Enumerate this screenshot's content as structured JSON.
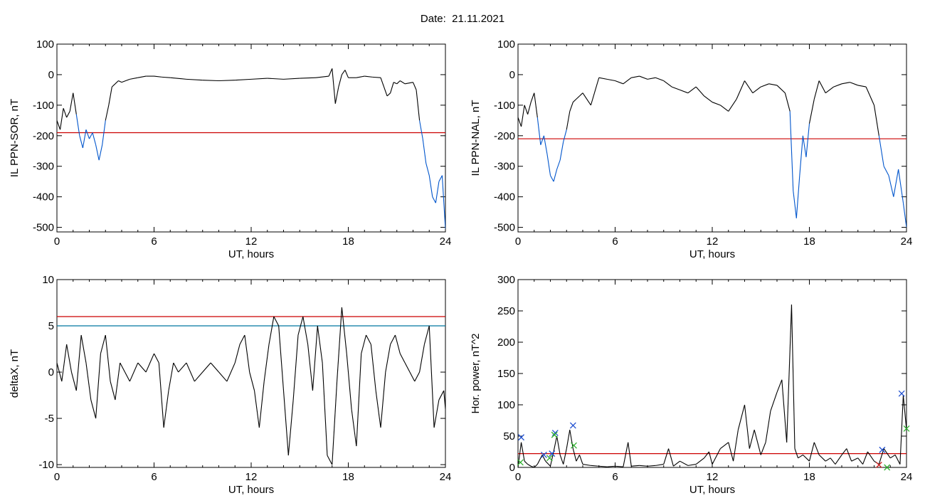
{
  "figure": {
    "title": "Date:  21.11.2021"
  },
  "colors": {
    "threshold": "#cc0000",
    "below": "#0055cc",
    "line": "#000000",
    "cyan_threshold": "#0077a0",
    "marker_blue": "#2050d0",
    "marker_green": "#30b030",
    "marker_red": "#cc2020"
  },
  "chart_data": [
    {
      "id": "ppn-sor",
      "type": "line",
      "xlabel": "UT, hours",
      "ylabel": "IL PPN-SOR, nT",
      "xlim": [
        0,
        24
      ],
      "ylim": [
        -515,
        100
      ],
      "xticks": [
        0,
        6,
        12,
        18,
        24
      ],
      "yticks": [
        -500,
        -400,
        -300,
        -200,
        -100,
        0,
        100
      ],
      "threshold": -190,
      "below_threshold_color": "blue",
      "x": [
        0,
        0.2,
        0.4,
        0.6,
        0.8,
        1.0,
        1.2,
        1.4,
        1.6,
        1.8,
        2.0,
        2.2,
        2.4,
        2.6,
        2.8,
        3.0,
        3.2,
        3.4,
        3.6,
        3.8,
        4.0,
        4.5,
        5.0,
        5.5,
        6.0,
        6.5,
        7.0,
        8.0,
        9.0,
        10.0,
        11.0,
        12.0,
        13.0,
        14.0,
        15.0,
        16.0,
        16.8,
        17.0,
        17.2,
        17.4,
        17.6,
        17.8,
        18.0,
        18.5,
        19.0,
        19.5,
        20.0,
        20.2,
        20.4,
        20.6,
        20.8,
        21.0,
        21.2,
        21.5,
        22.0,
        22.2,
        22.4,
        22.6,
        22.8,
        23.0,
        23.2,
        23.4,
        23.6,
        23.8,
        24.0
      ],
      "y": [
        -150,
        -180,
        -110,
        -140,
        -120,
        -60,
        -130,
        -200,
        -240,
        -180,
        -210,
        -190,
        -230,
        -280,
        -230,
        -150,
        -100,
        -40,
        -30,
        -20,
        -25,
        -15,
        -10,
        -5,
        -5,
        -8,
        -10,
        -15,
        -18,
        -20,
        -18,
        -15,
        -12,
        -15,
        -12,
        -10,
        -5,
        20,
        -95,
        -40,
        0,
        15,
        -10,
        -10,
        -5,
        -8,
        -10,
        -40,
        -70,
        -60,
        -25,
        -30,
        -20,
        -30,
        -25,
        -50,
        -150,
        -210,
        -290,
        -330,
        -400,
        -420,
        -350,
        -330,
        -505
      ]
    },
    {
      "id": "ppn-nal",
      "type": "line",
      "xlabel": "UT, hours",
      "ylabel": "IL PPN-NAL, nT",
      "xlim": [
        0,
        24
      ],
      "ylim": [
        -515,
        100
      ],
      "xticks": [
        0,
        6,
        12,
        18,
        24
      ],
      "yticks": [
        -500,
        -400,
        -300,
        -200,
        -100,
        0,
        100
      ],
      "threshold": -210,
      "below_threshold_color": "blue",
      "x": [
        0,
        0.2,
        0.4,
        0.6,
        0.8,
        1.0,
        1.2,
        1.4,
        1.6,
        1.8,
        2.0,
        2.2,
        2.4,
        2.6,
        2.8,
        3.0,
        3.2,
        3.4,
        3.6,
        3.8,
        4.0,
        4.5,
        5.0,
        5.5,
        6.0,
        6.5,
        7.0,
        7.5,
        8.0,
        8.5,
        9.0,
        9.5,
        10.0,
        10.5,
        11.0,
        11.5,
        12.0,
        12.5,
        13.0,
        13.5,
        14.0,
        14.5,
        15.0,
        15.5,
        16.0,
        16.5,
        16.8,
        17.0,
        17.2,
        17.4,
        17.6,
        17.8,
        18.0,
        18.3,
        18.6,
        19.0,
        19.5,
        20.0,
        20.5,
        21.0,
        21.5,
        22.0,
        22.3,
        22.6,
        22.9,
        23.2,
        23.5,
        23.8,
        24.0
      ],
      "y": [
        -140,
        -170,
        -100,
        -130,
        -90,
        -60,
        -140,
        -230,
        -200,
        -260,
        -330,
        -350,
        -310,
        -280,
        -220,
        -180,
        -120,
        -90,
        -80,
        -70,
        -60,
        -100,
        -10,
        -15,
        -20,
        -30,
        -10,
        -5,
        -15,
        -10,
        -20,
        -40,
        -50,
        -60,
        -40,
        -70,
        -90,
        -100,
        -120,
        -80,
        -20,
        -60,
        -40,
        -30,
        -35,
        -60,
        -120,
        -380,
        -470,
        -330,
        -200,
        -270,
        -160,
        -80,
        -20,
        -60,
        -40,
        -30,
        -25,
        -35,
        -40,
        -100,
        -200,
        -300,
        -330,
        -400,
        -310,
        -420,
        -500
      ]
    },
    {
      "id": "deltax",
      "type": "line",
      "xlabel": "UT, hours",
      "ylabel": "deltaX, nT",
      "xlim": [
        0,
        24
      ],
      "ylim": [
        -10.3,
        10
      ],
      "xticks": [
        0,
        6,
        12,
        18,
        24
      ],
      "yticks": [
        -10,
        -5,
        0,
        5,
        10
      ],
      "thresholds": [
        6,
        5
      ],
      "x": [
        0,
        0.3,
        0.6,
        0.9,
        1.2,
        1.5,
        1.8,
        2.1,
        2.4,
        2.7,
        3.0,
        3.3,
        3.6,
        3.9,
        4.2,
        4.5,
        5.0,
        5.5,
        6.0,
        6.3,
        6.6,
        6.9,
        7.2,
        7.5,
        8.0,
        8.5,
        9.0,
        9.5,
        10.0,
        10.5,
        11.0,
        11.3,
        11.6,
        11.9,
        12.2,
        12.5,
        12.8,
        13.1,
        13.4,
        13.7,
        14.0,
        14.3,
        14.6,
        14.9,
        15.2,
        15.5,
        15.8,
        16.1,
        16.4,
        16.7,
        17.0,
        17.3,
        17.6,
        17.9,
        18.2,
        18.5,
        18.8,
        19.1,
        19.4,
        19.7,
        20.0,
        20.3,
        20.6,
        20.9,
        21.2,
        21.5,
        21.8,
        22.1,
        22.4,
        22.7,
        23.0,
        23.3,
        23.6,
        23.9,
        24.0
      ],
      "y": [
        1,
        -1,
        3,
        0,
        -2,
        4,
        1,
        -3,
        -5,
        2,
        4,
        -1,
        -3,
        1,
        0,
        -1,
        1,
        0,
        2,
        1,
        -6,
        -2,
        1,
        0,
        1,
        -1,
        0,
        1,
        0,
        -1,
        1,
        3,
        4,
        0,
        -2,
        -6,
        -1,
        3,
        6,
        5,
        -2,
        -9,
        -3,
        4,
        6,
        3,
        -2,
        5,
        1,
        -9,
        -10,
        -1,
        7,
        2,
        -4,
        -8,
        2,
        4,
        3,
        -2,
        -6,
        0,
        3,
        4,
        2,
        1,
        0,
        -1,
        0,
        3,
        5,
        -6,
        -3,
        -2,
        -4
      ]
    },
    {
      "id": "hor-power",
      "type": "line",
      "xlabel": "UT, hours",
      "ylabel": "Hor. power, nT^2",
      "xlim": [
        0,
        24
      ],
      "ylim": [
        0,
        300
      ],
      "xticks": [
        0,
        6,
        12,
        18,
        24
      ],
      "yticks": [
        0,
        50,
        100,
        150,
        200,
        250,
        300
      ],
      "threshold": 22,
      "x": [
        0,
        0.2,
        0.4,
        0.6,
        0.8,
        1.0,
        1.2,
        1.5,
        1.7,
        2.0,
        2.2,
        2.4,
        2.6,
        2.8,
        3.0,
        3.2,
        3.4,
        3.6,
        3.8,
        4.0,
        4.5,
        5.0,
        5.5,
        6.0,
        6.5,
        6.8,
        7.0,
        7.5,
        8.0,
        8.5,
        9.0,
        9.3,
        9.6,
        10.0,
        10.5,
        11.0,
        11.5,
        11.8,
        12.0,
        12.5,
        13.0,
        13.3,
        13.6,
        14.0,
        14.3,
        14.6,
        15.0,
        15.3,
        15.6,
        16.0,
        16.3,
        16.6,
        16.9,
        17.1,
        17.3,
        17.6,
        18.0,
        18.3,
        18.6,
        19.0,
        19.3,
        19.6,
        20.0,
        20.3,
        20.6,
        21.0,
        21.3,
        21.6,
        22.0,
        22.3,
        22.6,
        23.0,
        23.3,
        23.6,
        23.8,
        24.0
      ],
      "y": [
        0,
        40,
        10,
        5,
        2,
        0,
        5,
        20,
        10,
        2,
        25,
        50,
        20,
        5,
        30,
        60,
        30,
        10,
        20,
        5,
        3,
        2,
        1,
        2,
        1,
        40,
        2,
        3,
        2,
        3,
        5,
        30,
        2,
        10,
        3,
        5,
        15,
        25,
        5,
        30,
        40,
        10,
        60,
        100,
        30,
        60,
        20,
        40,
        90,
        120,
        140,
        40,
        260,
        30,
        15,
        20,
        10,
        40,
        20,
        10,
        15,
        5,
        20,
        30,
        10,
        15,
        5,
        25,
        10,
        5,
        30,
        15,
        20,
        5,
        115,
        60
      ],
      "markers": [
        {
          "x": 0.2,
          "y": 48,
          "color": "blue"
        },
        {
          "x": 0.15,
          "y": 8,
          "color": "green"
        },
        {
          "x": 1.6,
          "y": 20,
          "color": "blue"
        },
        {
          "x": 2.1,
          "y": 22,
          "color": "blue"
        },
        {
          "x": 2.3,
          "y": 55,
          "color": "blue"
        },
        {
          "x": 2.25,
          "y": 52,
          "color": "green"
        },
        {
          "x": 3.4,
          "y": 67,
          "color": "blue"
        },
        {
          "x": 3.45,
          "y": 35,
          "color": "green"
        },
        {
          "x": 1.95,
          "y": 15,
          "color": "green"
        },
        {
          "x": 22.5,
          "y": 28,
          "color": "blue"
        },
        {
          "x": 22.3,
          "y": 4,
          "color": "red"
        },
        {
          "x": 22.8,
          "y": 0,
          "color": "green"
        },
        {
          "x": 23.7,
          "y": 118,
          "color": "blue"
        },
        {
          "x": 24.0,
          "y": 62,
          "color": "green"
        }
      ]
    }
  ]
}
